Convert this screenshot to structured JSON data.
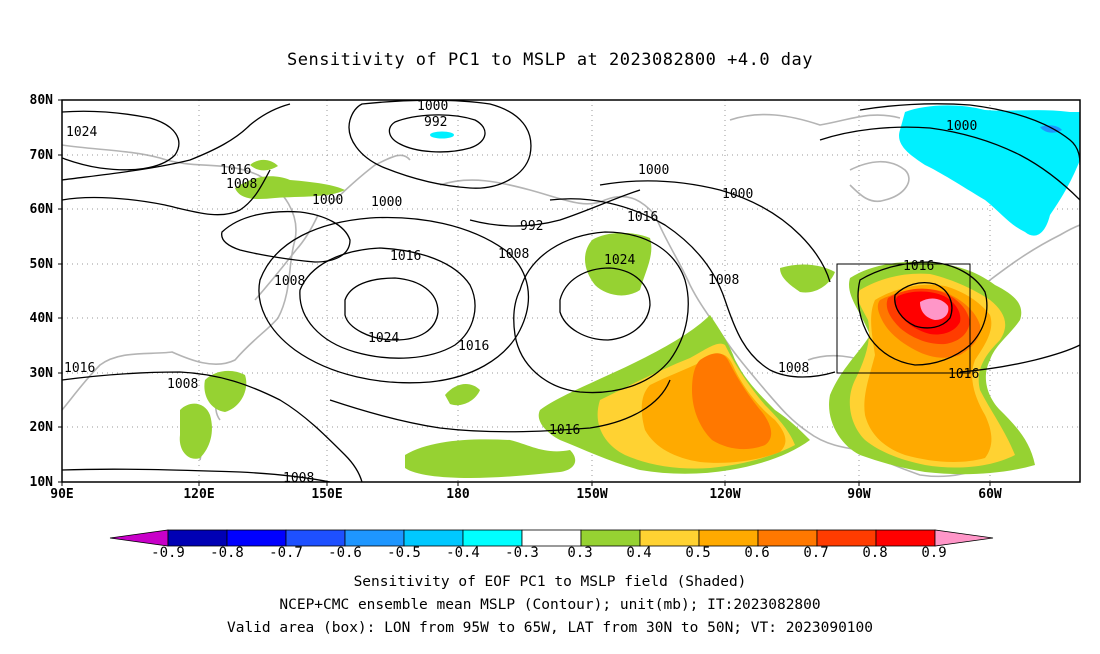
{
  "title": "Sensitivity of PC1 to MSLP at 2023082800 +4.0 day",
  "lat_labels": [
    "80N",
    "70N",
    "60N",
    "50N",
    "40N",
    "30N",
    "20N",
    "10N"
  ],
  "lon_labels": [
    "90E",
    "120E",
    "150E",
    "180",
    "150W",
    "120W",
    "90W",
    "60W"
  ],
  "contour_labels": [
    "1000",
    "992",
    "1024",
    "1016",
    "1008",
    "1008",
    "1000",
    "1000",
    "992",
    "1008",
    "1000",
    "1016",
    "1024",
    "1000",
    "1016",
    "1008",
    "1016",
    "1024",
    "1016",
    "1008",
    "1008",
    "1016",
    "1016",
    "1016",
    "1008",
    "1000"
  ],
  "colorbar": {
    "labels": [
      "-0.9",
      "-0.8",
      "-0.7",
      "-0.6",
      "-0.5",
      "-0.4",
      "-0.3",
      "0.3",
      "0.4",
      "0.5",
      "0.6",
      "0.7",
      "0.8",
      "0.9"
    ],
    "colors": [
      "#c800c8",
      "#0000b4",
      "#0000ff",
      "#1e50ff",
      "#1e96ff",
      "#00c8ff",
      "#00ffff",
      "#ffffff",
      "#96d232",
      "#ffd232",
      "#ffaa00",
      "#ff7800",
      "#ff3c00",
      "#ff0000",
      "#ff96c8"
    ]
  },
  "captions": {
    "line1": "Sensitivity of EOF PC1 to MSLP field (Shaded)",
    "line2": "NCEP+CMC ensemble mean MSLP (Contour); unit(mb); IT:2023082800",
    "line3": "Valid area (box): LON from 95W to 65W, LAT from 30N to 50N; VT: 2023090100"
  }
}
